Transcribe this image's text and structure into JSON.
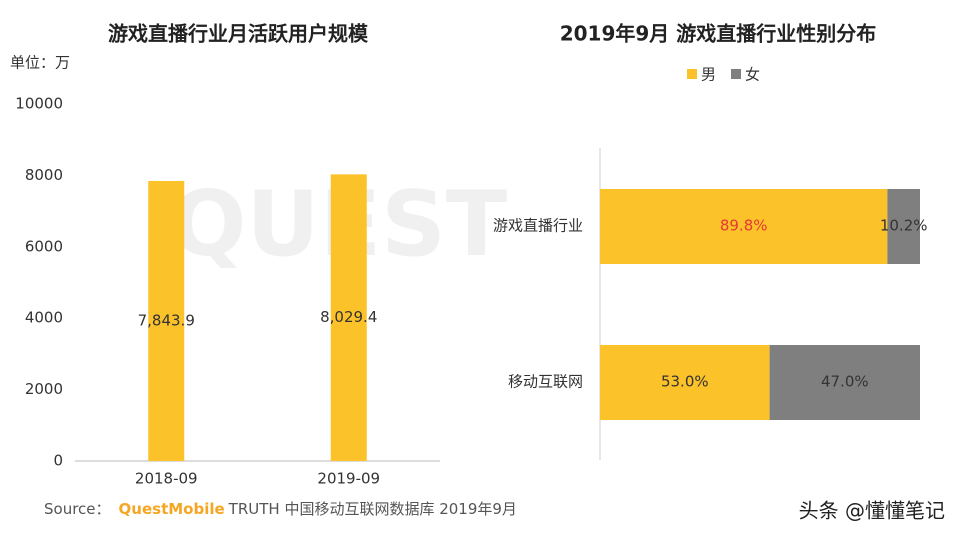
{
  "chart_data": [
    {
      "type": "bar",
      "title": "游戏直播行业月活跃用户规模",
      "unit_label": "单位：万",
      "categories": [
        "2018-09",
        "2019-09"
      ],
      "values": [
        7843.9,
        8029.4
      ],
      "value_labels": [
        "7,843.9",
        "8,029.4"
      ],
      "color": "#fbc22a",
      "ylim": [
        0,
        10000
      ],
      "yticks": [
        0,
        2000,
        4000,
        6000,
        8000,
        10000
      ]
    },
    {
      "type": "stacked_barh",
      "title": "2019年9月 游戏直播行业性别分布",
      "categories": [
        "游戏直播行业",
        "移动互联网"
      ],
      "xlim": [
        0,
        100
      ],
      "legend": "top",
      "series": [
        {
          "name": "男",
          "color": "#fbc22a",
          "values": [
            89.8,
            53.0
          ],
          "value_labels": [
            "89.8%",
            "53.0%"
          ],
          "label_colors": [
            "#e53935",
            "#333333"
          ]
        },
        {
          "name": "女",
          "color": "#7f7f7f",
          "values": [
            10.2,
            47.0
          ],
          "value_labels": [
            "10.2%",
            "47.0%"
          ],
          "label_colors": [
            "#333333",
            "#333333"
          ]
        }
      ]
    }
  ],
  "watermark": "QUEST",
  "source": {
    "prefix": "Source：",
    "brand": "QuestMobile",
    "text": "TRUTH 中国移动互联网数据库 2019年9月"
  },
  "credit": "头条 @懂懂笔记"
}
